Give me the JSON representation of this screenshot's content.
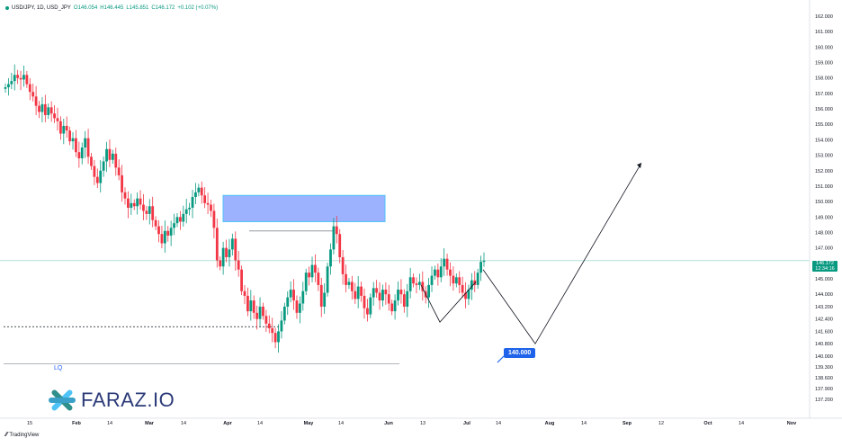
{
  "legend": {
    "symbol": "USD/JPY, 1D, USD_JPY",
    "open": "O146.054",
    "high": "H146.445",
    "low": "L145.851",
    "close": "C146.172",
    "change": "+0.102 (+0.07%)"
  },
  "price_tag": {
    "price": "146.172",
    "countdown": "12:34:16"
  },
  "target_label": "140.000",
  "lq_label": "LQ",
  "brand": {
    "name": "FARAZ.IO",
    "platform": "TradingView"
  },
  "colors": {
    "up": "#089981",
    "down": "#f23645",
    "zone": "#8ba5ff",
    "zone_border": "#4fc3f7",
    "path": "#131722"
  },
  "chart_data": {
    "type": "candlestick",
    "title": "USD/JPY, 1D",
    "ylim": [
      136.0,
      163.0
    ],
    "y_ticks": [
      "162.000",
      "161.000",
      "160.000",
      "159.000",
      "158.000",
      "157.000",
      "156.000",
      "155.000",
      "154.000",
      "153.000",
      "152.000",
      "151.000",
      "150.000",
      "149.000",
      "148.000",
      "147.000",
      "146.000",
      "145.000",
      "144.000",
      "143.200",
      "142.400",
      "141.600",
      "140.800",
      "140.000",
      "139.300",
      "138.600",
      "137.900",
      "137.200"
    ],
    "x_ticks": [
      {
        "label": "15",
        "month": false
      },
      {
        "label": "Feb",
        "month": true
      },
      {
        "label": "14",
        "month": false
      },
      {
        "label": "Mar",
        "month": true
      },
      {
        "label": "14",
        "month": false
      },
      {
        "label": "Apr",
        "month": true
      },
      {
        "label": "14",
        "month": false
      },
      {
        "label": "May",
        "month": true
      },
      {
        "label": "14",
        "month": false
      },
      {
        "label": "Jun",
        "month": true
      },
      {
        "label": "13",
        "month": false
      },
      {
        "label": "Jul",
        "month": true
      },
      {
        "label": "14",
        "month": false
      },
      {
        "label": "Aug",
        "month": true
      },
      {
        "label": "14",
        "month": false
      },
      {
        "label": "Sep",
        "month": true
      },
      {
        "label": "12",
        "month": false
      },
      {
        "label": "Oct",
        "month": true
      },
      {
        "label": "14",
        "month": false
      },
      {
        "label": "Nov",
        "month": true
      }
    ],
    "last_price": 146.172,
    "supply_zone": {
      "low": 148.7,
      "high": 150.4
    },
    "rejection_level": 148.1,
    "dotted_level": 141.9,
    "lq_level": 139.5,
    "projection": [
      {
        "date": "2025-07-07",
        "price": 145.6
      },
      {
        "date": "2025-08-14",
        "price": 140.8
      },
      {
        "date": "2025-09-20",
        "price": 152.5
      }
    ],
    "harmonic": [
      {
        "date": "2025-06-17",
        "price": 144.6
      },
      {
        "date": "2025-06-24",
        "price": 142.2
      },
      {
        "date": "2025-07-02",
        "price": 144.8
      }
    ],
    "closes": [
      157.4,
      157.6,
      157.8,
      158.2,
      158.0,
      157.9,
      158.2,
      157.6,
      157.1,
      156.8,
      156.2,
      155.8,
      156.3,
      155.6,
      156.1,
      155.7,
      155.4,
      155.2,
      154.4,
      154.9,
      154.6,
      153.9,
      154.1,
      153.2,
      152.8,
      153.5,
      154.1,
      152.9,
      152.3,
      151.6,
      151.2,
      152.0,
      152.6,
      153.4,
      152.7,
      153.1,
      152.2,
      151.7,
      150.6,
      150.2,
      149.6,
      149.9,
      149.7,
      150.2,
      149.8,
      149.4,
      149.2,
      149.7,
      148.8,
      148.4,
      147.9,
      147.3,
      148.1,
      147.8,
      148.3,
      148.6,
      149.0,
      148.7,
      149.2,
      149.5,
      149.6,
      150.3,
      150.6,
      150.9,
      150.4,
      149.9,
      149.8,
      149.4,
      148.3,
      146.2,
      145.8,
      147.0,
      146.4,
      146.9,
      147.6,
      146.2,
      145.6,
      144.2,
      143.9,
      142.9,
      143.6,
      142.8,
      142.4,
      143.2,
      142.6,
      142.1,
      141.8,
      141.5,
      140.9,
      141.6,
      142.3,
      143.2,
      143.8,
      144.3,
      143.6,
      142.8,
      143.4,
      144.2,
      145.4,
      145.1,
      145.9,
      145.4,
      144.6,
      143.2,
      144.1,
      145.8,
      146.9,
      148.4,
      147.9,
      146.4,
      145.3,
      144.6,
      144.8,
      144.2,
      143.7,
      144.5,
      143.9,
      143.1,
      142.7,
      143.8,
      144.4,
      144.1,
      143.6,
      144.3,
      144.0,
      143.4,
      142.9,
      143.6,
      144.3,
      144.0,
      143.2,
      144.2,
      145.1,
      144.7,
      144.6,
      144.8,
      144.2,
      143.8,
      144.6,
      145.2,
      145.6,
      145.1,
      145.8,
      146.3,
      145.6,
      145.2,
      144.7,
      145.1,
      144.6,
      144.1,
      143.7,
      144.3,
      144.9,
      144.6,
      145.4,
      146.1,
      146.172
    ]
  }
}
